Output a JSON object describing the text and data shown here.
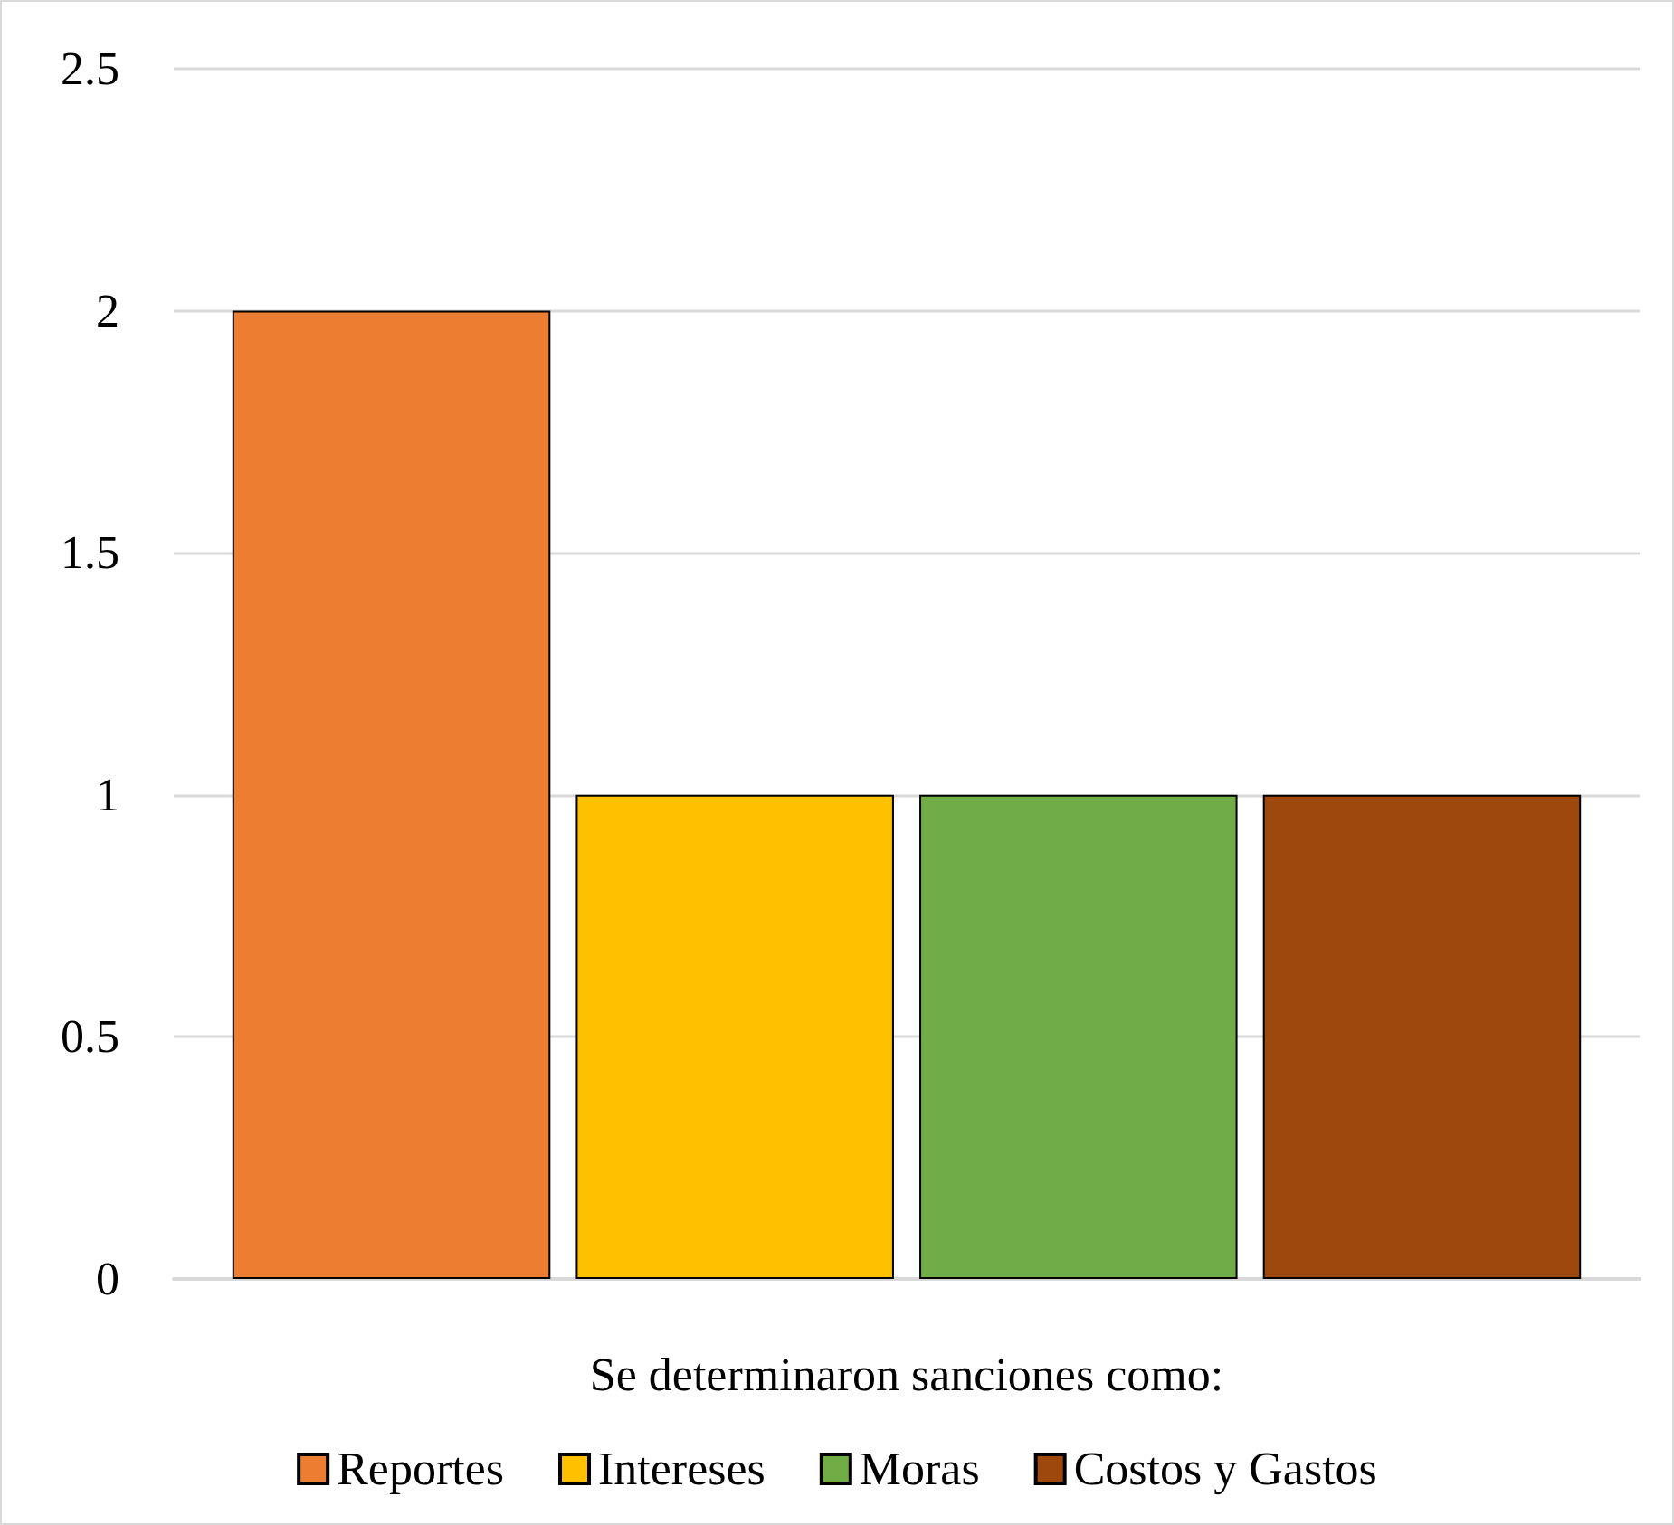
{
  "chart_data": {
    "type": "bar",
    "xlabel": "Se determinaron sanciones como:",
    "categories": [
      null
    ],
    "series": [
      {
        "name": "Reportes",
        "color": "#ed7d31",
        "values": [
          2
        ]
      },
      {
        "name": "Intereses",
        "color": "#ffc000",
        "values": [
          1
        ]
      },
      {
        "name": "Moras",
        "color": "#70ad47",
        "values": [
          1
        ]
      },
      {
        "name": "Costos y Gastos",
        "color": "#9e480e",
        "values": [
          1
        ]
      }
    ],
    "ylim": [
      0,
      2.5
    ],
    "yticks": [
      0,
      0.5,
      1,
      1.5,
      2,
      2.5
    ],
    "grid": "y",
    "legend": "bottom"
  }
}
